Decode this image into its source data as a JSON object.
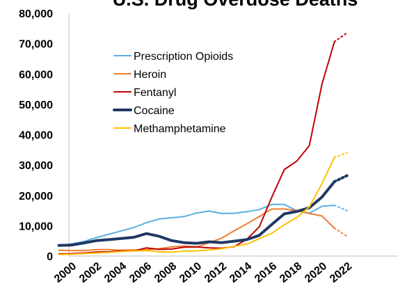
{
  "chart_data": {
    "type": "line",
    "title": "U.S. Drug Overdose Deaths",
    "xlabel": "",
    "ylabel": "",
    "ylim": [
      0,
      80000
    ],
    "yticks": [
      "0",
      "10,000",
      "20,000",
      "30,000",
      "40,000",
      "50,000",
      "60,000",
      "70,000",
      "80,000"
    ],
    "xticks": [
      "2000",
      "2002",
      "2004",
      "2006",
      "2008",
      "2010",
      "2012",
      "2014",
      "2016",
      "2018",
      "2020",
      "2022"
    ],
    "x": [
      1999,
      2000,
      2001,
      2002,
      2003,
      2004,
      2005,
      2006,
      2007,
      2008,
      2009,
      2010,
      2011,
      2012,
      2013,
      2014,
      2015,
      2016,
      2017,
      2018,
      2019,
      2020,
      2021
    ],
    "legend_position": "upper-left",
    "series": [
      {
        "name": "Prescription Opioids",
        "color": "#5aaee3",
        "width": 2,
        "values": [
          3400,
          4000,
          4800,
          6100,
          7200,
          8300,
          9400,
          11000,
          12200,
          12600,
          13000,
          14200,
          14800,
          14000,
          14100,
          14600,
          15300,
          17000,
          17000,
          14900,
          14100,
          16400,
          16700
        ],
        "projection": [
          [
            2021,
            16700
          ],
          [
            2022,
            15000
          ]
        ]
      },
      {
        "name": "Heroin",
        "color": "#ed7d31",
        "width": 2,
        "values": [
          1900,
          1800,
          1800,
          2100,
          2100,
          1900,
          2000,
          2100,
          2400,
          3000,
          3300,
          3000,
          4400,
          5900,
          8300,
          10600,
          13000,
          15500,
          15500,
          15000,
          14000,
          13200,
          9200
        ],
        "projection": [
          [
            2021,
            9200
          ],
          [
            2022,
            6500
          ]
        ]
      },
      {
        "name": "Fentanyl",
        "color": "#c00000",
        "width": 2,
        "values": [
          700,
          800,
          1000,
          1300,
          1400,
          1700,
          1700,
          2700,
          2200,
          2300,
          2900,
          3000,
          2700,
          2600,
          3100,
          5500,
          9600,
          19400,
          28500,
          31300,
          36400,
          56500,
          70600
        ],
        "projection": [
          [
            2021,
            70600
          ],
          [
            2022,
            73500
          ]
        ]
      },
      {
        "name": "Cocaine",
        "color": "#203864",
        "width": 4,
        "values": [
          3500,
          3600,
          4300,
          5100,
          5400,
          5800,
          6200,
          7400,
          6500,
          5100,
          4400,
          4200,
          4700,
          4400,
          4900,
          5400,
          6800,
          10400,
          13900,
          14700,
          15900,
          19400,
          24500
        ],
        "projection": [
          [
            2021,
            24500
          ],
          [
            2022,
            26500
          ]
        ]
      },
      {
        "name": "Methamphetamine",
        "color": "#ffc000",
        "width": 2,
        "values": [
          500,
          600,
          800,
          1000,
          1200,
          1500,
          1700,
          1800,
          1400,
          1300,
          1600,
          1700,
          2000,
          2400,
          3200,
          3900,
          5700,
          7500,
          10300,
          12700,
          16200,
          23800,
          32500
        ],
        "projection": [
          [
            2021,
            32500
          ],
          [
            2022,
            34000
          ]
        ]
      }
    ]
  }
}
